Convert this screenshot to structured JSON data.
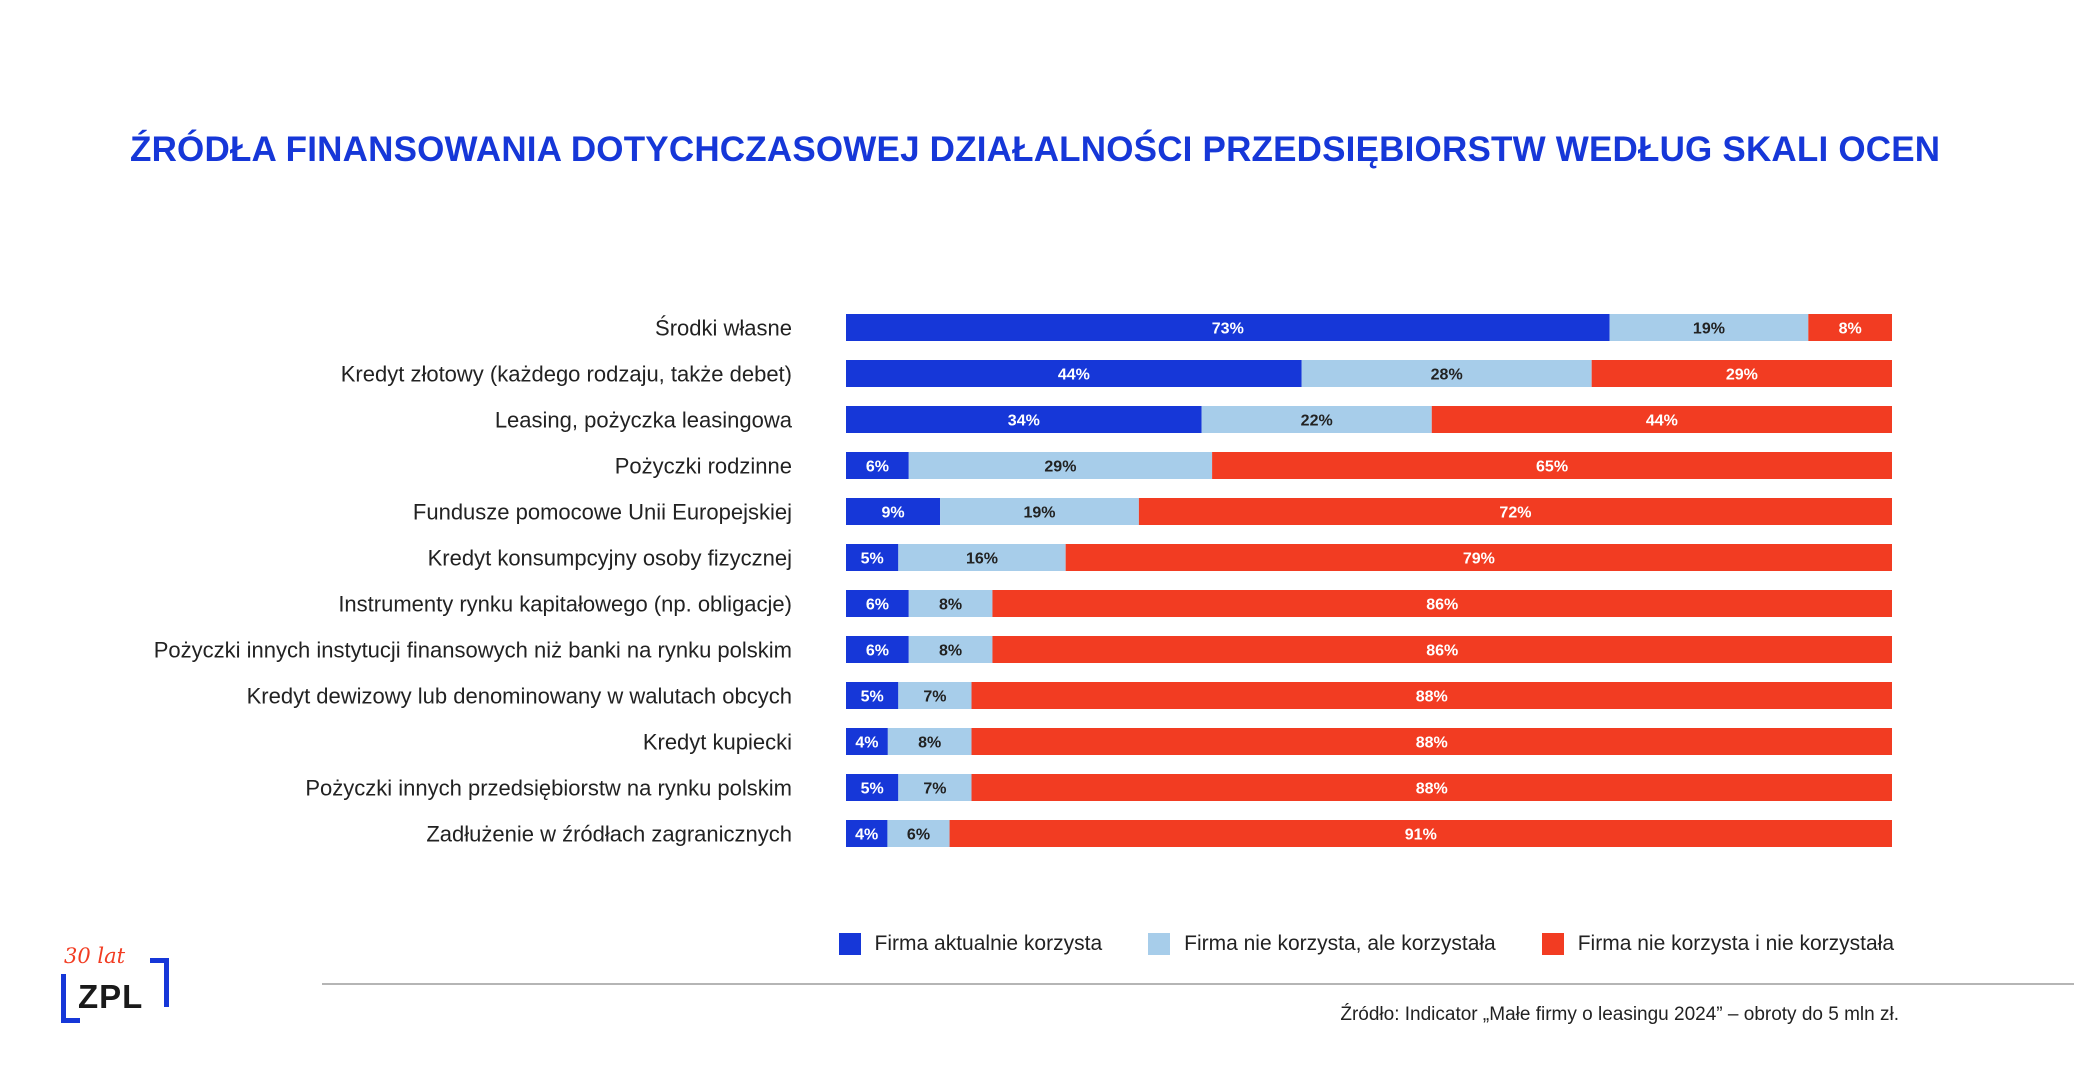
{
  "title": "ŹRÓDŁA FINANSOWANIA DOTYCHCZASOWEJ DZIAŁALNOŚCI PRZEDSIĘBIORSTW WEDŁUG SKALI OCEN",
  "chart_data": {
    "type": "bar",
    "orientation": "horizontal",
    "stacked": true,
    "categories": [
      "Środki własne",
      "Kredyt złotowy (każdego rodzaju, także debet)",
      "Leasing, pożyczka leasingowa",
      "Pożyczki rodzinne",
      "Fundusze pomocowe Unii Europejskiej",
      "Kredyt konsumpcyjny osoby fizycznej",
      "Instrumenty rynku kapitałowego (np. obligacje)",
      "Pożyczki innych instytucji finansowych niż banki na rynku polskim",
      "Kredyt dewizowy lub denominowany w walutach obcych",
      "Kredyt kupiecki",
      "Pożyczki innych przedsiębiorstw na rynku polskim",
      "Zadłużenie w źródłach zagranicznych"
    ],
    "series": [
      {
        "name": "Firma aktualnie korzysta",
        "color": "#1637D8",
        "label_color": "#ffffff",
        "values": [
          73,
          44,
          34,
          6,
          9,
          5,
          6,
          6,
          5,
          4,
          5,
          4
        ]
      },
      {
        "name": "Firma nie korzysta, ale korzystała",
        "color": "#A7CDEA",
        "label_color": "#222222",
        "values": [
          19,
          28,
          22,
          29,
          19,
          16,
          8,
          8,
          7,
          8,
          7,
          6
        ]
      },
      {
        "name": "Firma nie korzysta i nie korzystała",
        "color": "#F23C22",
        "label_color": "#ffffff",
        "values": [
          8,
          29,
          44,
          65,
          72,
          79,
          86,
          86,
          88,
          88,
          88,
          91
        ]
      }
    ],
    "value_suffix": "%",
    "legend_position": "bottom-right"
  },
  "source": "Źródło: Indicator „Małe firmy o leasingu 2024” – obroty do 5 mln zł.",
  "logo": {
    "years": "30 lat",
    "name": "ZPL"
  }
}
